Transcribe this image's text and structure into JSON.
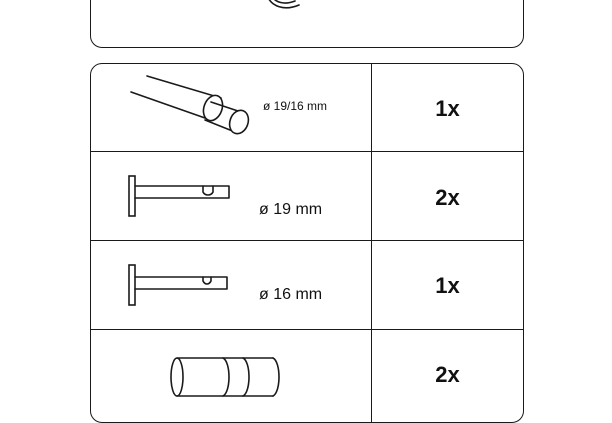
{
  "rows": [
    {
      "part": "rod",
      "dimension": "ø 19/16 mm",
      "quantity": "1x"
    },
    {
      "part": "bracket-19",
      "dimension": "ø 19 mm",
      "quantity": "2x"
    },
    {
      "part": "bracket-16",
      "dimension": "ø 16 mm",
      "quantity": "1x"
    },
    {
      "part": "connector",
      "dimension": "",
      "quantity": "2x"
    }
  ]
}
